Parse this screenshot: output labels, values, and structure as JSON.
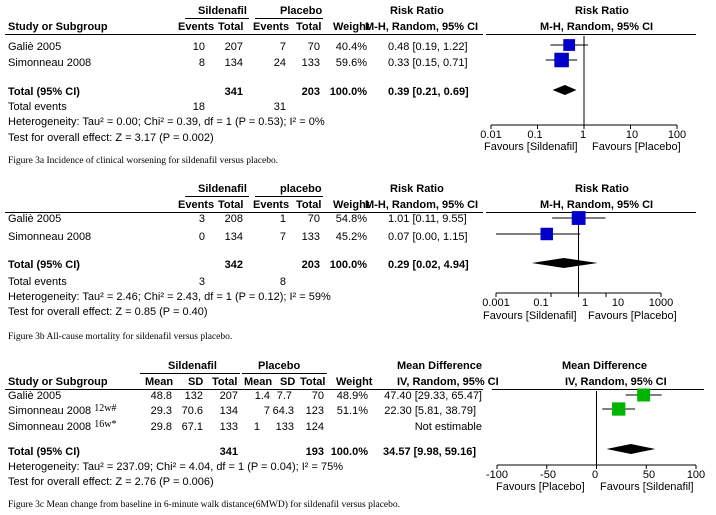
{
  "panels": [
    {
      "id": "3a",
      "headers": {
        "study": "Study or Subgroup",
        "group1": "Sildenafil",
        "group2": "Placebo",
        "events": "Events",
        "total": "Total",
        "weight": "Weight",
        "rr": "Risk Ratio",
        "rr_method": "M-H, Random, 95% CI",
        "plot_title": "Risk Ratio",
        "plot_method": "M-H, Random, 95% CI"
      },
      "rows": [
        {
          "study": "Galiè 2005",
          "e1": "10",
          "t1": "207",
          "e2": "7",
          "t2": "70",
          "weight": "40.4%",
          "ci": "0.48 [0.19, 1.22]"
        },
        {
          "study": "Simonneau 2008",
          "e1": "8",
          "t1": "134",
          "e2": "24",
          "t2": "133",
          "weight": "59.6%",
          "ci": "0.33 [0.15, 0.71]"
        }
      ],
      "total": {
        "label": "Total (95% CI)",
        "t1": "341",
        "t2": "203",
        "weight": "100.0%",
        "ci": "0.39 [0.21, 0.69]"
      },
      "total_events": {
        "label": "Total events",
        "e1": "18",
        "e2": "31"
      },
      "heterogeneity": "Heterogeneity: Tau² = 0.00; Chi² = 0.39, df = 1 (P = 0.53); I² = 0%",
      "overall": "Test for overall effect: Z = 3.17 (P = 0.002)",
      "ticks": [
        "0.01",
        "0.1",
        "1",
        "10",
        "100"
      ],
      "favours_left": "Favours [Sildenafil]",
      "favours_right": "Favours [Placebo]",
      "caption": "Figure 3a   Incidence of clinical worsening for sildenafil versus placebo."
    },
    {
      "id": "3b",
      "headers": {
        "group1": "Sildenafil",
        "group2": "placebo",
        "events": "Events",
        "total": "Total",
        "weight": "Weight",
        "rr": "Risk Ratio",
        "rr_method": "M-H, Random, 95% CI",
        "plot_title": "Risk Ratio",
        "plot_method": "M-H, Random, 95% CI"
      },
      "rows": [
        {
          "study": "Galiè 2005",
          "e1": "3",
          "t1": "208",
          "e2": "1",
          "t2": "70",
          "weight": "54.8%",
          "ci": "1.01 [0.11, 9.55]"
        },
        {
          "study": "Simonneau 2008",
          "e1": "0",
          "t1": "134",
          "e2": "7",
          "t2": "133",
          "weight": "45.2%",
          "ci": "0.07 [0.00, 1.15]"
        }
      ],
      "total": {
        "label": "Total (95% CI)",
        "t1": "342",
        "t2": "203",
        "weight": "100.0%",
        "ci": "0.29 [0.02, 4.94]"
      },
      "total_events": {
        "label": "Total events",
        "e1": "3",
        "e2": "8"
      },
      "heterogeneity": "Heterogeneity: Tau² = 2.46; Chi² = 2.43, df = 1 (P = 0.12); I² = 59%",
      "overall": "Test for overall effect: Z = 0.85 (P = 0.40)",
      "ticks": [
        "0.001",
        "0.1",
        "1",
        "10",
        "1000"
      ],
      "favours_left": "Favours [Sildenafil]",
      "favours_right": "Favours [Placebo]",
      "caption": "Figure 3b   All-cause mortality for sildenafil versus placebo."
    },
    {
      "id": "3c",
      "headers": {
        "study": "Study or Subgroup",
        "group1": "Sildenafil",
        "group2": "Placebo",
        "mean": "Mean",
        "sd": "SD",
        "total": "Total",
        "weight": "Weight",
        "md": "Mean Difference",
        "md_method": "IV, Random, 95% CI",
        "plot_title": "Mean Difference",
        "plot_method": "IV, Random, 95% CI"
      },
      "rows": [
        {
          "study": "Galiè 2005",
          "sup": "",
          "m1": "48.8",
          "sd1": "132",
          "t1": "207",
          "m2": "1.4",
          "sd2": "7.7",
          "t2": "70",
          "weight": "48.9%",
          "ci": "47.40 [29.33, 65.47]"
        },
        {
          "study": "Simonneau 2008",
          "sup": "12w#",
          "m1": "29.3",
          "sd1": "70.6",
          "t1": "134",
          "m2": "7",
          "sd2": "64.3",
          "t2": "123",
          "weight": "51.1%",
          "ci": "22.30 [5.81, 38.79]"
        },
        {
          "study": "Simonneau 2008",
          "sup": "16w*",
          "m1": "29.8",
          "sd1": "67.1",
          "t1": "133",
          "m2": "1",
          "sd2": "133",
          "t2": "124",
          "weight": "",
          "ci": "Not estimable"
        }
      ],
      "total": {
        "label": "Total (95% CI)",
        "t1": "341",
        "t2": "193",
        "weight": "100.0%",
        "ci": "34.57 [9.98, 59.16]"
      },
      "heterogeneity": "Heterogeneity: Tau² = 237.09; Chi² = 4.04, df = 1 (P = 0.04); I² = 75%",
      "overall": "Test for overall effect: Z = 2.76 (P = 0.006)",
      "ticks": [
        "-100",
        "-50",
        "0",
        "50",
        "100"
      ],
      "favours_left": "Favours [Placebo]",
      "favours_right": "Favours [Sildenafil]",
      "caption": "Figure 3c   Mean change from baseline in 6-minute walk distance(6MWD) for sildenafil versus placebo."
    }
  ],
  "chart_data": [
    {
      "type": "forest",
      "title": "Risk Ratio (M-H, Random, 95% CI)",
      "scale": "log",
      "xlim": [
        0.01,
        100
      ],
      "ticks": [
        0.01,
        0.1,
        1,
        10,
        100
      ],
      "studies": [
        {
          "name": "Galiè 2005",
          "estimate": 0.48,
          "lower": 0.19,
          "upper": 1.22,
          "weight": 40.4
        },
        {
          "name": "Simonneau 2008",
          "estimate": 0.33,
          "lower": 0.15,
          "upper": 0.71,
          "weight": 59.6
        }
      ],
      "pooled": {
        "estimate": 0.39,
        "lower": 0.21,
        "upper": 0.69
      }
    },
    {
      "type": "forest",
      "title": "Risk Ratio (M-H, Random, 95% CI)",
      "scale": "log",
      "xlim": [
        0.001,
        1000
      ],
      "ticks": [
        0.001,
        0.1,
        1,
        10,
        1000
      ],
      "studies": [
        {
          "name": "Galiè 2005",
          "estimate": 1.01,
          "lower": 0.11,
          "upper": 9.55,
          "weight": 54.8
        },
        {
          "name": "Simonneau 2008",
          "estimate": 0.07,
          "lower": 0.001,
          "upper": 1.15,
          "weight": 45.2
        }
      ],
      "pooled": {
        "estimate": 0.29,
        "lower": 0.02,
        "upper": 4.94
      }
    },
    {
      "type": "forest",
      "title": "Mean Difference (IV, Random, 95% CI)",
      "scale": "linear",
      "xlim": [
        -100,
        100
      ],
      "ticks": [
        -100,
        -50,
        0,
        50,
        100
      ],
      "studies": [
        {
          "name": "Galiè 2005",
          "estimate": 47.4,
          "lower": 29.33,
          "upper": 65.47,
          "weight": 48.9
        },
        {
          "name": "Simonneau 2008 12w#",
          "estimate": 22.3,
          "lower": 5.81,
          "upper": 38.79,
          "weight": 51.1
        }
      ],
      "pooled": {
        "estimate": 34.57,
        "lower": 9.98,
        "upper": 59.16
      }
    }
  ]
}
